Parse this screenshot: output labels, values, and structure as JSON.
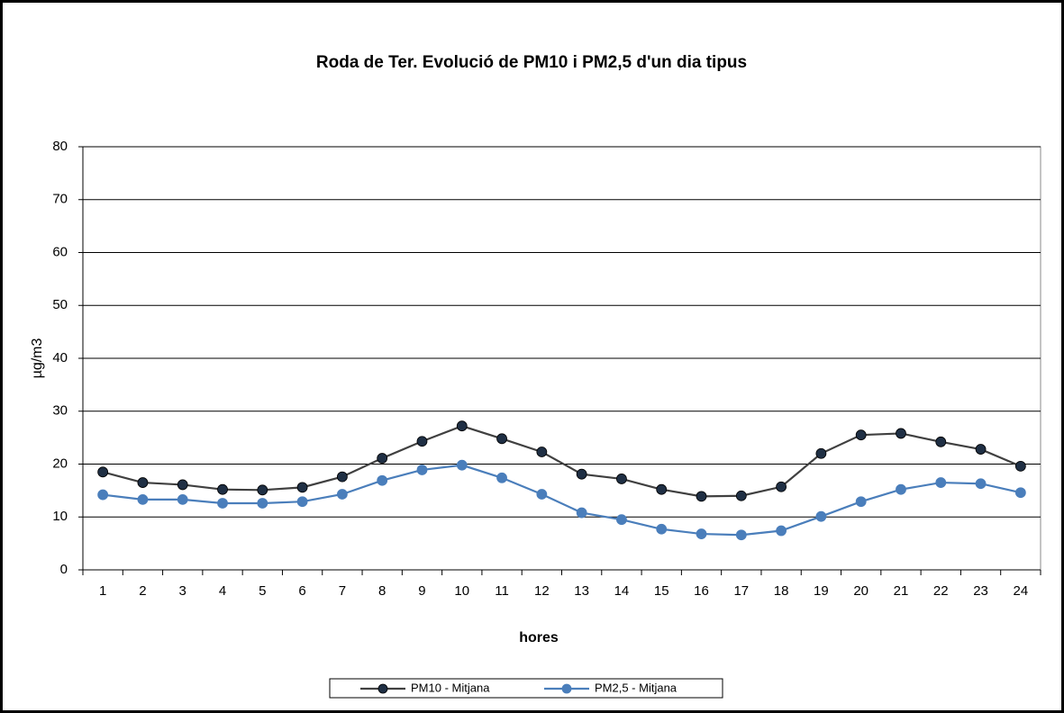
{
  "chart_data": {
    "type": "line",
    "title": "Roda de Ter. Evolució de PM10 i PM2,5  d'un dia tipus",
    "x_label": "hores",
    "y_label": "µg/m3",
    "categories": [
      "1",
      "2",
      "3",
      "4",
      "5",
      "6",
      "7",
      "8",
      "9",
      "10",
      "11",
      "12",
      "13",
      "14",
      "15",
      "16",
      "17",
      "18",
      "19",
      "20",
      "21",
      "22",
      "23",
      "24"
    ],
    "series": [
      {
        "name": "PM10 -  Mitjana",
        "color": "#1f2f44",
        "values": [
          18.5,
          16.5,
          16.1,
          15.2,
          15.1,
          15.6,
          17.6,
          21.1,
          24.3,
          27.2,
          24.8,
          22.3,
          18.1,
          17.2,
          15.2,
          13.9,
          14.0,
          15.7,
          22.0,
          25.5,
          25.8,
          24.2,
          22.8,
          19.6
        ]
      },
      {
        "name": "PM2,5 -  Mitjana",
        "color": "#4a7ebb",
        "values": [
          14.2,
          13.3,
          13.3,
          12.6,
          12.6,
          12.9,
          14.3,
          16.9,
          18.9,
          19.8,
          17.4,
          14.3,
          10.8,
          9.5,
          7.7,
          6.8,
          6.6,
          7.4,
          10.1,
          12.9,
          15.2,
          16.5,
          16.3,
          14.6
        ]
      }
    ],
    "ylim": [
      0,
      80
    ],
    "yticks": [
      0,
      10,
      20,
      30,
      40,
      50,
      60,
      70,
      80
    ],
    "grid": true,
    "legend": "bottom"
  }
}
